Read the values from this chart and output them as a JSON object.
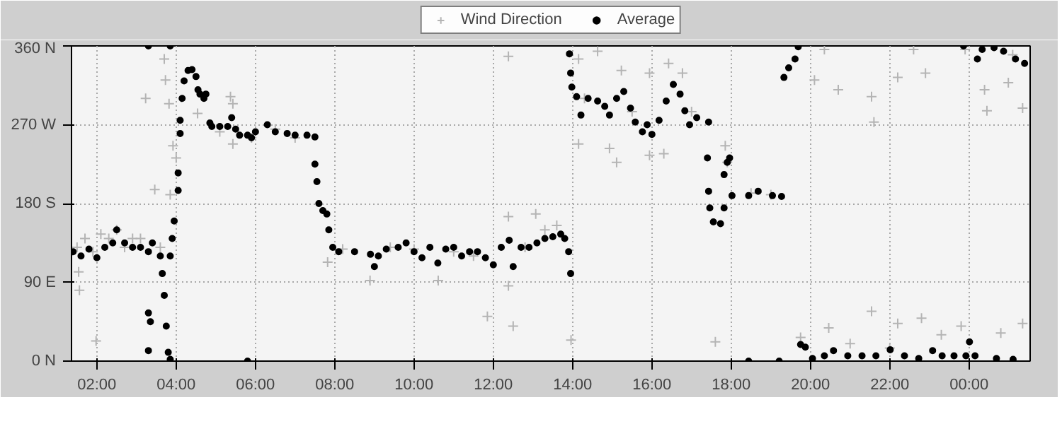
{
  "chart_data": {
    "type": "scatter",
    "xlim": [
      1.36,
      25.54
    ],
    "ylim": [
      0,
      360
    ],
    "xticks": [
      {
        "value": 2,
        "label": "02:00"
      },
      {
        "value": 4,
        "label": "04:00"
      },
      {
        "value": 6,
        "label": "06:00"
      },
      {
        "value": 8,
        "label": "08:00"
      },
      {
        "value": 10,
        "label": "10:00"
      },
      {
        "value": 12,
        "label": "12:00"
      },
      {
        "value": 14,
        "label": "14:00"
      },
      {
        "value": 16,
        "label": "16:00"
      },
      {
        "value": 18,
        "label": "18:00"
      },
      {
        "value": 20,
        "label": "20:00"
      },
      {
        "value": 22,
        "label": "22:00"
      },
      {
        "value": 24,
        "label": "00:00"
      }
    ],
    "yticks": [
      {
        "value": 0,
        "label": "0 N"
      },
      {
        "value": 90,
        "label": "90 E"
      },
      {
        "value": 180,
        "label": "180 S"
      },
      {
        "value": 270,
        "label": "270 W"
      },
      {
        "value": 360,
        "label": "360 N"
      }
    ],
    "grid": true,
    "legend": "top",
    "series": [
      {
        "name": "Wind Direction",
        "color": "#b4b4b4",
        "marker": "cross",
        "x": [
          1.5,
          1.54,
          1.56,
          1.7,
          1.9,
          1.98,
          2.1,
          2.3,
          2.5,
          2.7,
          2.9,
          3.1,
          3.23,
          3.46,
          3.6,
          3.7,
          3.73,
          3.82,
          3.85,
          3.92,
          4.0,
          4.54,
          5.1,
          5.37,
          5.43,
          5.43,
          5.9,
          6.5,
          7.0,
          7.82,
          8.2,
          8.89,
          9.4,
          10.0,
          10.61,
          11.0,
          11.5,
          11.85,
          12.38,
          12.38,
          12.38,
          12.5,
          12.8,
          13.07,
          13.3,
          13.6,
          13.96,
          14.15,
          14.15,
          14.3,
          14.63,
          14.93,
          15.11,
          15.23,
          15.5,
          15.94,
          15.94,
          16.3,
          16.42,
          16.77,
          17.0,
          17.6,
          17.85,
          17.9,
          18.5,
          19.0,
          19.75,
          20.1,
          20.35,
          20.46,
          20.7,
          21.0,
          21.54,
          21.54,
          21.6,
          22.0,
          22.2,
          22.2,
          22.6,
          22.8,
          22.9,
          23.3,
          23.8,
          23.9,
          24.39,
          24.45,
          24.8,
          24.99,
          25.1,
          25.35,
          25.35
        ],
        "values": [
          130,
          102,
          81,
          140,
          125,
          23,
          145,
          140,
          150,
          130,
          140,
          140,
          300,
          196,
          130,
          345,
          321,
          294,
          190,
          246,
          232,
          283,
          262,
          302,
          294,
          248,
          255,
          265,
          255,
          113,
          128,
          92,
          130,
          128,
          92,
          125,
          120,
          51,
          348,
          86,
          165,
          40,
          130,
          168,
          150,
          155,
          24,
          345,
          248,
          300,
          354,
          243,
          227,
          332,
          285,
          329,
          235,
          237,
          340,
          329,
          285,
          22,
          246,
          227,
          192,
          190,
          27,
          321,
          356,
          38,
          310,
          20,
          57,
          302,
          273,
          15,
          324,
          43,
          356,
          49,
          329,
          30,
          40,
          356,
          310,
          286,
          32,
          318,
          350,
          289,
          43
        ],
        "line_style": "none"
      },
      {
        "name": "Average",
        "color": "#000000",
        "marker": "circle",
        "x": [
          1.4,
          1.6,
          1.8,
          2.0,
          2.2,
          2.4,
          2.5,
          2.7,
          2.9,
          3.1,
          3.3,
          3.3,
          3.3,
          3.35,
          3.3,
          3.4,
          3.6,
          3.65,
          3.7,
          3.75,
          3.8,
          3.85,
          3.85,
          3.85,
          3.9,
          3.95,
          4.05,
          4.05,
          4.1,
          4.1,
          4.15,
          4.2,
          4.3,
          4.4,
          4.5,
          4.55,
          4.6,
          4.7,
          4.75,
          4.85,
          4.9,
          5.1,
          5.3,
          5.4,
          5.5,
          5.6,
          5.8,
          5.8,
          5.9,
          6.0,
          6.3,
          6.5,
          6.8,
          7.0,
          7.3,
          7.5,
          7.5,
          7.55,
          7.6,
          7.7,
          7.8,
          7.85,
          7.95,
          8.1,
          8.5,
          8.9,
          9.0,
          9.1,
          9.3,
          9.6,
          9.8,
          10.0,
          10.2,
          10.4,
          10.6,
          10.8,
          11.0,
          11.2,
          11.4,
          11.6,
          11.8,
          12.0,
          12.2,
          12.4,
          12.5,
          12.7,
          12.9,
          13.1,
          13.3,
          13.5,
          13.7,
          13.8,
          13.9,
          13.92,
          13.95,
          13.95,
          13.98,
          14.1,
          14.21,
          14.39,
          14.63,
          14.81,
          14.93,
          15.11,
          15.29,
          15.46,
          15.58,
          15.76,
          15.88,
          16.0,
          16.18,
          16.36,
          16.54,
          16.71,
          16.83,
          16.95,
          17.13,
          17.4,
          17.43,
          17.43,
          17.46,
          17.55,
          17.73,
          17.82,
          17.82,
          17.9,
          17.96,
          18.02,
          18.44,
          18.44,
          18.68,
          19.04,
          19.21,
          19.27,
          19.33,
          19.45,
          19.61,
          19.69,
          19.75,
          19.87,
          20.05,
          20.35,
          20.58,
          20.94,
          21.3,
          21.65,
          22.01,
          22.37,
          22.73,
          23.08,
          23.32,
          23.62,
          23.86,
          23.92,
          24.01,
          24.15,
          24.21,
          24.33,
          24.63,
          24.69,
          24.87,
          25.11,
          25.17,
          25.4
        ],
        "values": [
          125,
          120,
          128,
          118,
          130,
          135,
          150,
          135,
          130,
          130,
          125,
          360,
          55,
          45,
          12,
          135,
          120,
          100,
          75,
          40,
          10,
          2,
          360,
          120,
          140,
          160,
          195,
          215,
          260,
          275,
          300,
          320,
          332,
          333,
          325,
          310,
          305,
          300,
          305,
          272,
          268,
          268,
          268,
          278,
          265,
          258,
          258,
          0,
          255,
          262,
          270,
          262,
          260,
          258,
          258,
          256,
          225,
          205,
          180,
          172,
          168,
          150,
          130,
          125,
          125,
          122,
          108,
          120,
          128,
          130,
          135,
          125,
          118,
          130,
          112,
          128,
          130,
          120,
          125,
          125,
          118,
          110,
          130,
          138,
          108,
          130,
          130,
          135,
          140,
          142,
          145,
          140,
          125,
          351,
          329,
          100,
          313,
          302,
          281,
          300,
          297,
          291,
          281,
          300,
          308,
          289,
          273,
          262,
          270,
          259,
          275,
          297,
          316,
          305,
          286,
          270,
          278,
          232,
          273,
          194,
          175,
          159,
          157,
          175,
          213,
          227,
          232,
          189,
          189,
          0,
          194,
          189,
          0,
          188,
          324,
          335,
          345,
          359,
          19,
          16,
          3,
          6,
          12,
          6,
          6,
          6,
          13,
          6,
          3,
          12,
          6,
          6,
          360,
          6,
          22,
          6,
          345,
          356,
          358,
          3,
          354,
          2,
          345,
          340
        ],
        "line_style": "none"
      }
    ]
  }
}
